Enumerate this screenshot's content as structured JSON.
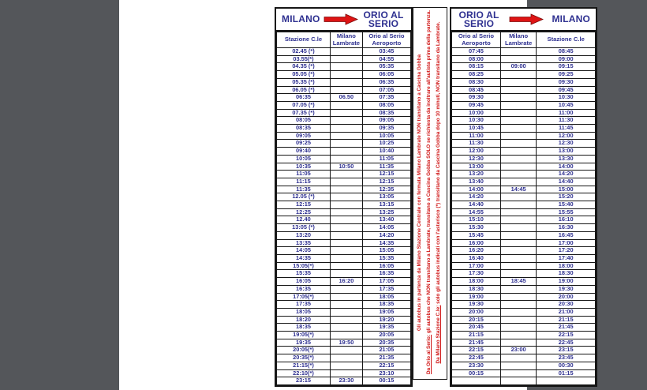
{
  "left_table": {
    "from": "MILANO",
    "to": "ORIO AL SERIO",
    "columns": [
      "Stazione C.le",
      "Milano Lambrate",
      "Orio al Serio Aeroporto"
    ],
    "rows": [
      [
        "02.45 (*)",
        "",
        "03:45"
      ],
      [
        "03.55(*)",
        "",
        "04:55"
      ],
      [
        "04.35 (*)",
        "",
        "05:35"
      ],
      [
        "05.05 (*)",
        "",
        "06:05"
      ],
      [
        "05.35 (*)",
        "",
        "06:35"
      ],
      [
        "06.05 (*)",
        "",
        "07:05"
      ],
      [
        "06:35",
        "06.50",
        "07:35"
      ],
      [
        "07.05 (*)",
        "",
        "08:05"
      ],
      [
        "07.35 (*)",
        "",
        "08:35"
      ],
      [
        "08:05",
        "",
        "09:05"
      ],
      [
        "08:35",
        "",
        "09:35"
      ],
      [
        "09:05",
        "",
        "10:05"
      ],
      [
        "09:25",
        "",
        "10:25"
      ],
      [
        "09:40",
        "",
        "10:40"
      ],
      [
        "10:05",
        "",
        "11:05"
      ],
      [
        "10:35",
        "10:50",
        "11:35"
      ],
      [
        "11:05",
        "",
        "12:15"
      ],
      [
        "11:15",
        "",
        "12:15"
      ],
      [
        "11:35",
        "",
        "12:35"
      ],
      [
        "12.05 (*)",
        "",
        "13:05"
      ],
      [
        "12:15",
        "",
        "13:15"
      ],
      [
        "12:25",
        "",
        "13:25"
      ],
      [
        "12.40",
        "",
        "13:40"
      ],
      [
        "13:05 (*)",
        "",
        "14:05"
      ],
      [
        "13:20",
        "",
        "14:20"
      ],
      [
        "13:35",
        "",
        "14:35"
      ],
      [
        "14:05",
        "",
        "15:05"
      ],
      [
        "14:35",
        "",
        "15:35"
      ],
      [
        "15:05(*)",
        "",
        "16:05"
      ],
      [
        "15:35",
        "",
        "16:35"
      ],
      [
        "16:05",
        "16:20",
        "17:05"
      ],
      [
        "16:35",
        "",
        "17:35"
      ],
      [
        "17:05(*)",
        "",
        "18:05"
      ],
      [
        "17:35",
        "",
        "18:35"
      ],
      [
        "18:05",
        "",
        "19:05"
      ],
      [
        "18:20",
        "",
        "19:20"
      ],
      [
        "18:35",
        "",
        "19:35"
      ],
      [
        "19:05(*)",
        "",
        "20:05"
      ],
      [
        "19:35",
        "19:50",
        "20:35"
      ],
      [
        "20:05(*)",
        "",
        "21:05"
      ],
      [
        "20:35(*)",
        "",
        "21:35"
      ],
      [
        "21:15(*)",
        "",
        "22:15"
      ],
      [
        "22:10(*)",
        "",
        "23:10"
      ],
      [
        "23:15",
        "23:30",
        "00:15"
      ]
    ]
  },
  "right_table": {
    "from": "ORIO AL SERIO",
    "to": "MILANO",
    "columns": [
      "Orio al Serio Aeroporto",
      "Milano Lambrate",
      "Stazione C.le"
    ],
    "rows": [
      [
        "07:45",
        "",
        "08:45"
      ],
      [
        "08:00",
        "",
        "09:00"
      ],
      [
        "08:15",
        "09:00",
        "09:15"
      ],
      [
        "08:25",
        "",
        "09:25"
      ],
      [
        "08:30",
        "",
        "09:30"
      ],
      [
        "08:45",
        "",
        "09:45"
      ],
      [
        "09:30",
        "",
        "10:30"
      ],
      [
        "09:45",
        "",
        "10:45"
      ],
      [
        "10:00",
        "",
        "11:00"
      ],
      [
        "10:30",
        "",
        "11:30"
      ],
      [
        "10:45",
        "",
        "11:45"
      ],
      [
        "11:00",
        "",
        "12:00"
      ],
      [
        "11:30",
        "",
        "12:30"
      ],
      [
        "12:00",
        "",
        "13:00"
      ],
      [
        "12:30",
        "",
        "13:30"
      ],
      [
        "13:00",
        "",
        "14:00"
      ],
      [
        "13:20",
        "",
        "14:20"
      ],
      [
        "13:40",
        "",
        "14:40"
      ],
      [
        "14:00",
        "14:45",
        "15:00"
      ],
      [
        "14:20",
        "",
        "15:20"
      ],
      [
        "14:40",
        "",
        "15:40"
      ],
      [
        "14:55",
        "",
        "15:55"
      ],
      [
        "15:10",
        "",
        "16:10"
      ],
      [
        "15:30",
        "",
        "16:30"
      ],
      [
        "15:45",
        "",
        "16:45"
      ],
      [
        "16:00",
        "",
        "17:00"
      ],
      [
        "16:20",
        "",
        "17:20"
      ],
      [
        "16:40",
        "",
        "17:40"
      ],
      [
        "17:00",
        "",
        "18:00"
      ],
      [
        "17:30",
        "",
        "18:30"
      ],
      [
        "18:00",
        "18:45",
        "19:00"
      ],
      [
        "18:30",
        "",
        "19:30"
      ],
      [
        "19:00",
        "",
        "20:00"
      ],
      [
        "19:30",
        "",
        "20:30"
      ],
      [
        "20:00",
        "",
        "21:00"
      ],
      [
        "20:15",
        "",
        "21:15"
      ],
      [
        "20:45",
        "",
        "21:45"
      ],
      [
        "21:15",
        "",
        "22:15"
      ],
      [
        "21:45",
        "",
        "22:45"
      ],
      [
        "22:15",
        "23:00",
        "23:15"
      ],
      [
        "22:45",
        "",
        "23:45"
      ],
      [
        "23:30",
        "",
        "00:30"
      ],
      [
        "00:15",
        "",
        "01:15"
      ],
      [
        "",
        "",
        ""
      ]
    ]
  },
  "notes": {
    "line1": {
      "prefix": "",
      "text": "Gli autobus in partenza da Milano Stazione Centrale con fermata Milano Lambrate NON transitano a Cascina Gobba"
    },
    "line2": {
      "prefix": "Da Orio al Serio:",
      "text": " gli autobus che NON transitano a Lambrate, transitano a Cascina Gobba SOLO se richiesta da inoltrare all'autista prima della partenza."
    },
    "line3": {
      "prefix": "Da Milano Stazione C.le:",
      "text": " solo gli autobus indicati con l'asterisco (*) transitano da Cascina Gobba dopo 10 minuti, NON transitano da Lambrate."
    }
  },
  "colors": {
    "navy_text": "#2e3090",
    "red_accent": "#cf1313",
    "background_gray": "#54565a",
    "border_black": "#161616",
    "paper_white": "#ffffff"
  }
}
